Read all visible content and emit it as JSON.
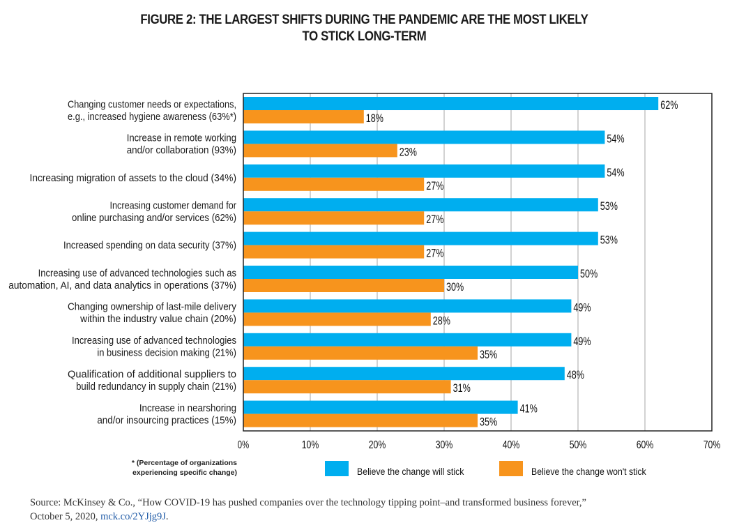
{
  "chart_data": {
    "type": "bar",
    "orientation": "horizontal",
    "title": "FIGURE 2: THE LARGEST SHIFTS DURING THE PANDEMIC ARE THE MOST LIKELY TO STICK LONG-TERM",
    "title_lines": [
      "FIGURE 2: THE LARGEST SHIFTS DURING THE PANDEMIC ARE THE MOST LIKELY",
      "TO STICK LONG-TERM"
    ],
    "xlabel": "",
    "ylabel": "",
    "xlim": [
      0,
      70
    ],
    "x_ticks": [
      0,
      10,
      20,
      30,
      40,
      50,
      60,
      70
    ],
    "x_tick_labels": [
      "0%",
      "10%",
      "20%",
      "30%",
      "40%",
      "50%",
      "60%",
      "70%"
    ],
    "grid": "vertical",
    "legend_position": "bottom",
    "categories": [
      [
        "Changing customer needs or expectations,",
        "e.g., increased hygiene awareness (63%*)"
      ],
      [
        "Increase in remote working",
        "and/or collaboration (93%)"
      ],
      [
        "Increasing migration of assets to the cloud (34%)"
      ],
      [
        "Increasing customer demand for",
        "online purchasing and/or services (62%)"
      ],
      [
        "Increased spending on data security (37%)"
      ],
      [
        "Increasing use of advanced technologies such as",
        "automation, AI, and data analytics in operations (37%)"
      ],
      [
        "Changing ownership of last-mile delivery",
        "within the industry value chain (20%)"
      ],
      [
        "Increasing use of advanced technologies",
        "in business decision making (21%)"
      ],
      [
        "Qualification of additional suppliers to",
        "build redundancy in supply chain (21%)"
      ],
      [
        "Increase in nearshoring",
        "and/or insourcing practices (15%)"
      ]
    ],
    "series": [
      {
        "name": "Believe the change will stick",
        "color": "#00aeef",
        "values": [
          62,
          54,
          54,
          53,
          53,
          50,
          49,
          49,
          48,
          41
        ],
        "labels": [
          "62%",
          "54%",
          "54%",
          "53%",
          "53%",
          "50%",
          "49%",
          "49%",
          "48%",
          "41%"
        ]
      },
      {
        "name": "Believe the change won't stick",
        "color": "#f7941d",
        "values": [
          18,
          23,
          27,
          27,
          27,
          30,
          28,
          35,
          31,
          35
        ],
        "labels": [
          "18%",
          "23%",
          "27%",
          "27%",
          "27%",
          "30%",
          "28%",
          "35%",
          "31%",
          "35%"
        ]
      }
    ],
    "footnote_lines": [
      "* (Percentage of organizations",
      "experiencing specific change)"
    ]
  },
  "source": {
    "text_line1": "Source: McKinsey & Co., “How COVID-19 has pushed companies over the technology tipping point–and transformed business forever,”",
    "text_line2_prefix": "October 5, 2020, ",
    "link_text": "mck.co/2YJjg9J",
    "text_line2_suffix": "."
  },
  "colors": {
    "grid": "#b3b3b3",
    "axis": "#222222"
  }
}
